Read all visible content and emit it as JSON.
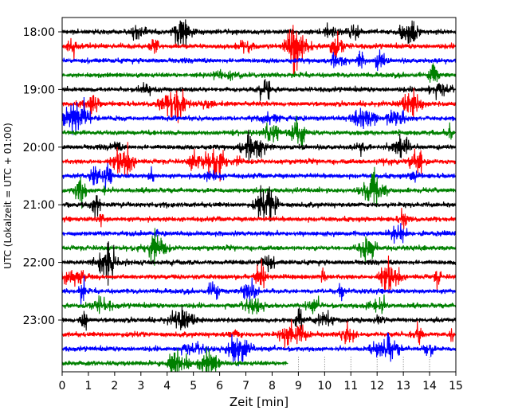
{
  "chart_data": {
    "type": "line",
    "subtype": "helicorder",
    "title": "",
    "xlabel": "Zeit  [min]",
    "ylabel": "UTC (Lokalzeit = UTC + 01:00)",
    "xlim": [
      0,
      15
    ],
    "x_ticks": [
      "0",
      "1",
      "2",
      "3",
      "4",
      "5",
      "6",
      "7",
      "8",
      "9",
      "10",
      "11",
      "12",
      "13",
      "14",
      "15"
    ],
    "y_ticks": [
      "18:00",
      "19:00",
      "20:00",
      "21:00",
      "22:00",
      "23:00"
    ],
    "start_time": "18:00",
    "trace_interval_minutes": 15,
    "trace_count": 24,
    "last_trace_end_minute": 8.6,
    "trace_color_cycle": [
      "#000000",
      "#ff0000",
      "#0000ff",
      "#008000"
    ],
    "vertical_gridlines_after_data_end": [
      9,
      10,
      11,
      12,
      13,
      14
    ],
    "grid": false,
    "legend": "none"
  }
}
